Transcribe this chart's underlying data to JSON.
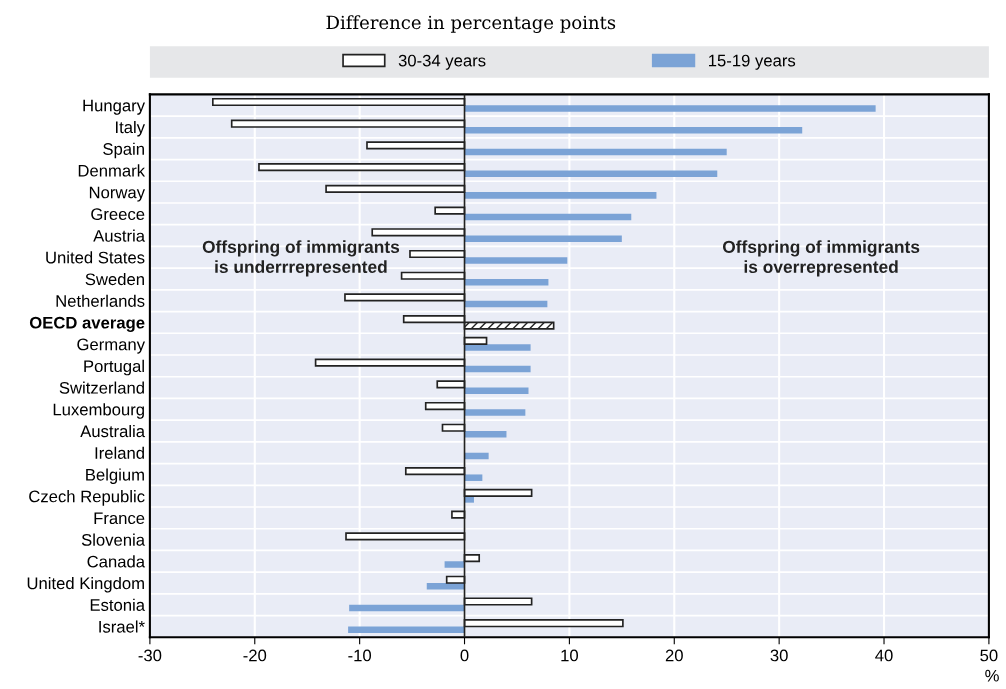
{
  "chart_data": {
    "type": "bar",
    "orientation": "horizontal",
    "subtitle": "Difference in percentage points",
    "xlabel": "%",
    "categories": [
      "Hungary",
      "Italy",
      "Spain",
      "Denmark",
      "Norway",
      "Greece",
      "Austria",
      "United States",
      "Sweden",
      "Netherlands",
      "OECD average",
      "Germany",
      "Portugal",
      "Switzerland",
      "Luxembourg",
      "Australia",
      "Ireland",
      "Belgium",
      "Czech Republic",
      "France",
      "Slovenia",
      "Canada",
      "United Kingdom",
      "Estonia",
      "Israel*"
    ],
    "series": [
      {
        "name": "30-34 years",
        "color": "#ffffff",
        "values": [
          -24.0,
          -22.2,
          -9.3,
          -19.6,
          -13.2,
          -2.8,
          -8.8,
          -5.2,
          -6.0,
          -11.4,
          -5.8,
          2.1,
          -14.2,
          -2.6,
          -3.7,
          -2.1,
          null,
          -5.6,
          6.4,
          -1.2,
          -11.3,
          1.4,
          -1.7,
          6.4,
          15.1
        ]
      },
      {
        "name": "15-19 years",
        "color": "#7ba3d6",
        "colors": [
          "#7ba3d6",
          "#7ba3d6",
          "#7ba3d6",
          "#7ba3d6",
          "#7ba3d6",
          "#7ba3d6",
          "#7ba3d6",
          "#7ba3d6",
          "#7ba3d6",
          "#7ba3d6",
          "#222222",
          "#7ba3d6",
          "#7ba3d6",
          "#7ba3d6",
          "#7ba3d6",
          "#7ba3d6",
          "#7ba3d6",
          "#7ba3d6",
          "#7ba3d6",
          "#7ba3d6",
          "#7ba3d6",
          "#7ba3d6",
          "#7ba3d6",
          "#7ba3d6",
          "#7ba3d6"
        ],
        "values": [
          39.2,
          32.2,
          25.0,
          24.1,
          18.3,
          15.9,
          15.0,
          9.8,
          8.0,
          7.9,
          8.5,
          6.3,
          6.3,
          6.1,
          5.8,
          4.0,
          2.3,
          1.7,
          0.9,
          null,
          null,
          -1.9,
          -3.6,
          -11.0,
          -11.1
        ]
      }
    ],
    "xlim": [
      -30,
      50
    ],
    "xticks": [
      -30,
      -20,
      -10,
      0,
      10,
      20,
      30,
      40,
      50
    ],
    "annotations": [
      "Offspring of immigrants\nis underrrepresented",
      "Offspring of immigrants\nis overrepresented"
    ],
    "grid": "x",
    "legend": "top"
  }
}
